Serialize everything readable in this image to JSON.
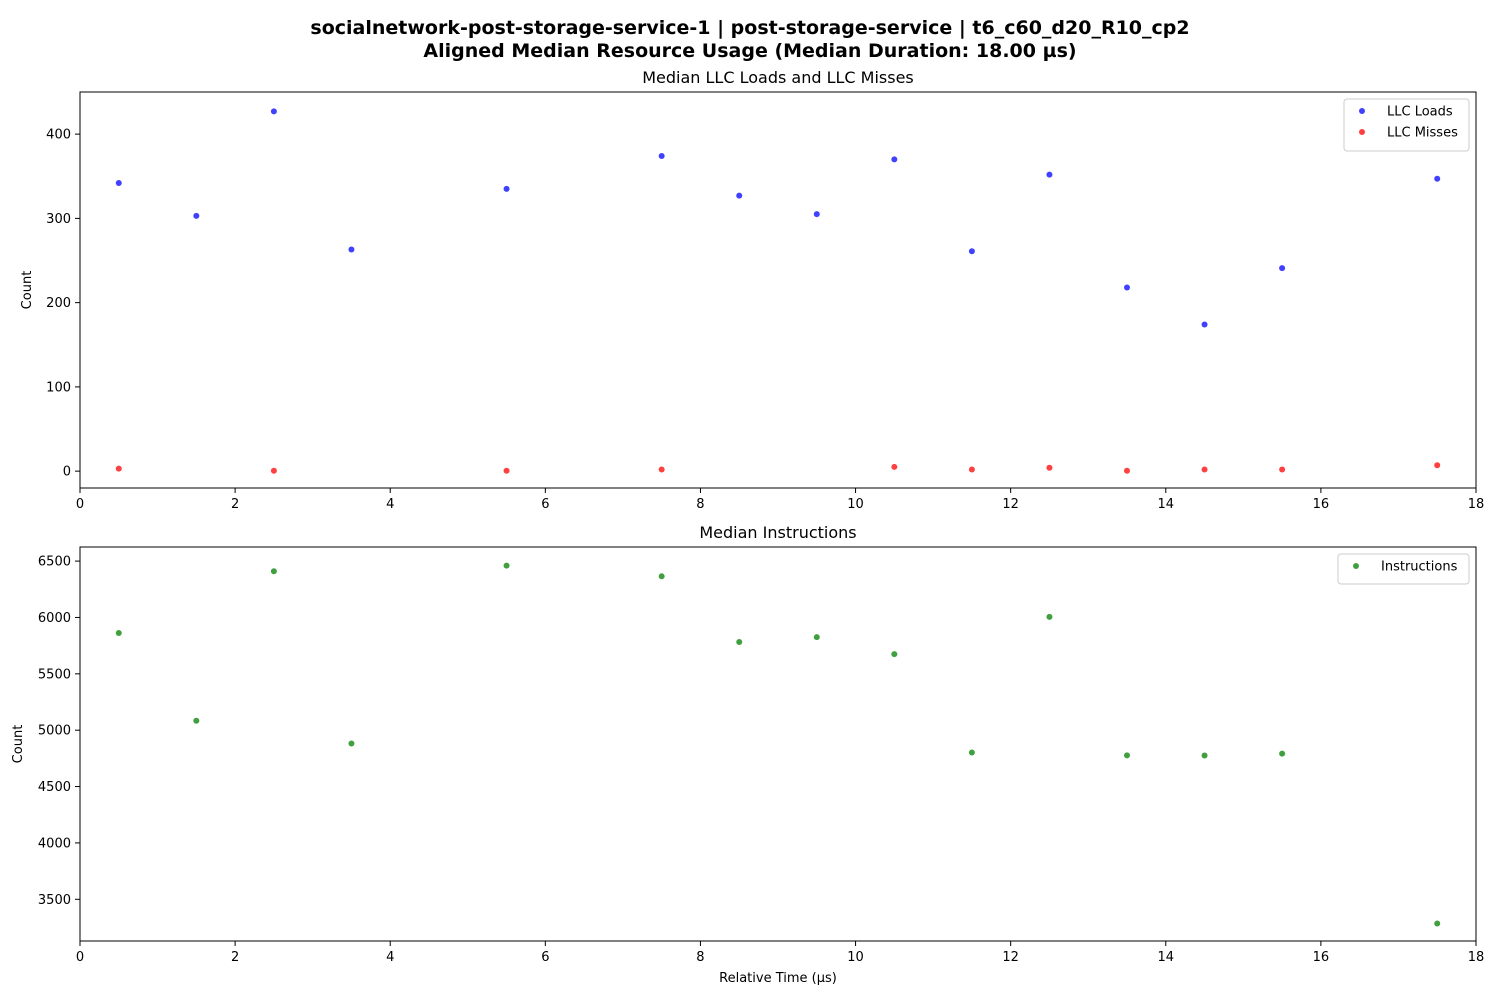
{
  "title_line1": "socialnetwork-post-storage-service-1 | post-storage-service | t6_c60_d20_R10_cp2",
  "title_line2": "Aligned Median Resource Usage (Median Duration: 18.00 µs)",
  "chart_data": [
    {
      "type": "scatter",
      "title": "Median LLC Loads and LLC Misses",
      "xlabel": "",
      "ylabel": "Count",
      "xlim": [
        0,
        18
      ],
      "ylim": [
        -20,
        450
      ],
      "xticks": [
        0,
        2,
        4,
        6,
        8,
        10,
        12,
        14,
        16,
        18
      ],
      "yticks": [
        0,
        100,
        200,
        300,
        400
      ],
      "legend_position": "top-right",
      "series": [
        {
          "name": "LLC Loads",
          "color": "#0000ff",
          "x": [
            0.5,
            1.5,
            2.5,
            3.5,
            5.5,
            7.5,
            8.5,
            9.5,
            10.5,
            11.5,
            12.5,
            13.5,
            14.5,
            15.5,
            17.5
          ],
          "y": [
            342,
            303,
            427,
            263,
            335,
            374,
            327,
            305,
            370,
            261,
            352,
            218,
            174,
            241,
            347
          ]
        },
        {
          "name": "LLC Misses",
          "color": "#ff0000",
          "x": [
            0.5,
            2.5,
            5.5,
            7.5,
            10.5,
            11.5,
            12.5,
            13.5,
            14.5,
            15.5,
            17.5
          ],
          "y": [
            3,
            0.5,
            0.5,
            2,
            5,
            2,
            4,
            0.5,
            2,
            2,
            7
          ]
        }
      ]
    },
    {
      "type": "scatter",
      "title": "Median Instructions",
      "xlabel": "Relative Time (µs)",
      "ylabel": "Count",
      "xlim": [
        0,
        18
      ],
      "ylim": [
        3130,
        6625
      ],
      "xticks": [
        0,
        2,
        4,
        6,
        8,
        10,
        12,
        14,
        16,
        18
      ],
      "yticks": [
        3500,
        4000,
        4500,
        5000,
        5500,
        6000,
        6500
      ],
      "legend_position": "top-right",
      "series": [
        {
          "name": "Instructions",
          "color": "#008000",
          "x": [
            0.5,
            1.5,
            2.5,
            3.5,
            5.5,
            7.5,
            8.5,
            9.5,
            10.5,
            11.5,
            12.5,
            13.5,
            14.5,
            15.5,
            17.5
          ],
          "y": [
            5862,
            5084,
            6410,
            4882,
            6460,
            6365,
            5782,
            5825,
            5675,
            4802,
            6005,
            4777,
            4775,
            4792,
            3285
          ]
        }
      ]
    }
  ]
}
